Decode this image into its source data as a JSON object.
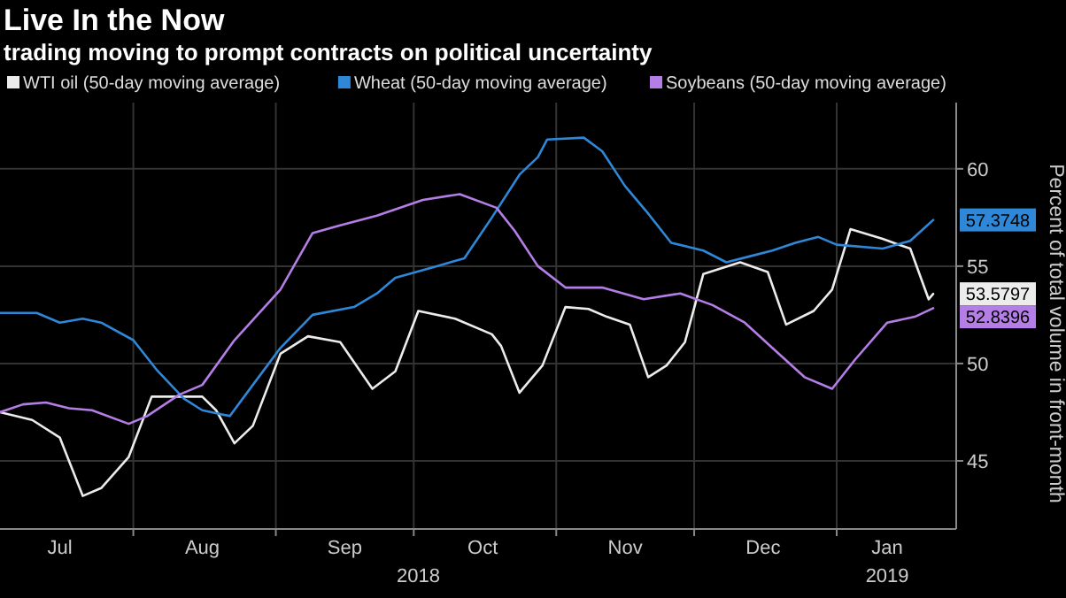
{
  "chart_data": {
    "type": "line",
    "title": "Live In the Now",
    "subtitle": "trading moving to prompt contracts on political uncertainty",
    "ylabel": "Percent of total volume in front-month",
    "xlim": [
      "2018-07-03",
      "2019-01-27"
    ],
    "xticks": [
      {
        "value": "2018-07-16",
        "label": "Jul"
      },
      {
        "value": "2018-08-01",
        "label": null
      },
      {
        "value": "2018-08-16",
        "label": "Aug"
      },
      {
        "value": "2018-09-01",
        "label": null
      },
      {
        "value": "2018-09-16",
        "label": "Sep"
      },
      {
        "value": "2018-10-01",
        "label": null
      },
      {
        "value": "2018-10-16",
        "label": "Oct"
      },
      {
        "value": "2018-11-01",
        "label": null
      },
      {
        "value": "2018-11-16",
        "label": "Nov"
      },
      {
        "value": "2018-12-01",
        "label": null
      },
      {
        "value": "2018-12-16",
        "label": "Dec"
      },
      {
        "value": "2019-01-01",
        "label": null
      },
      {
        "value": "2019-01-12",
        "label": "Jan"
      }
    ],
    "ylim": [
      41.5,
      63.4
    ],
    "yticks": [
      45,
      50,
      55,
      60
    ],
    "grid": true,
    "legend": "top",
    "line_style": "solid",
    "marker": "none",
    "x2lim": [
      "2018-07-03",
      "2019-01-27"
    ],
    "x2ticks": [
      {
        "value": "2018-10-02",
        "label": "2018"
      },
      {
        "value": "2019-01-12",
        "label": "2019"
      }
    ],
    "series": [
      {
        "name": "WTI oil (50-day moving average)",
        "color": "#ececec",
        "x": [
          "2018-07-03",
          "2018-07-10",
          "2018-07-16",
          "2018-07-21",
          "2018-07-25",
          "2018-07-31",
          "2018-08-05",
          "2018-08-11",
          "2018-08-16",
          "2018-08-19",
          "2018-08-23",
          "2018-08-27",
          "2018-09-02",
          "2018-09-08",
          "2018-09-15",
          "2018-09-22",
          "2018-09-27",
          "2018-10-02",
          "2018-10-10",
          "2018-10-18",
          "2018-10-20",
          "2018-10-24",
          "2018-10-29",
          "2018-11-03",
          "2018-11-08",
          "2018-11-12",
          "2018-11-17",
          "2018-11-21",
          "2018-11-25",
          "2018-11-29",
          "2018-12-03",
          "2018-12-11",
          "2018-12-17",
          "2018-12-21",
          "2018-12-27",
          "2018-12-31",
          "2019-01-04",
          "2019-01-11",
          "2019-01-17",
          "2019-01-21",
          "2019-01-22"
        ],
        "values": [
          47.5,
          47.1,
          46.2,
          43.2,
          43.6,
          45.2,
          48.3,
          48.3,
          48.3,
          47.6,
          45.9,
          46.8,
          50.5,
          51.4,
          51.1,
          48.7,
          49.6,
          52.7,
          52.3,
          51.5,
          50.9,
          48.5,
          49.9,
          52.9,
          52.8,
          52.4,
          52.0,
          49.3,
          49.9,
          51.1,
          54.6,
          55.2,
          54.7,
          52.0,
          52.7,
          53.8,
          56.9,
          56.4,
          55.9,
          53.3,
          53.5797
        ],
        "value_labels": [
          null,
          null,
          null,
          null,
          null,
          null,
          null,
          null,
          null,
          null,
          null,
          null,
          null,
          null,
          null,
          null,
          null,
          null,
          null,
          null,
          null,
          null,
          null,
          null,
          null,
          null,
          null,
          null,
          null,
          null,
          null,
          null,
          null,
          null,
          null,
          null,
          null,
          null,
          null,
          null,
          "53.5797"
        ]
      },
      {
        "name": "Wheat (50-day moving average)",
        "color": "#2f87d8",
        "x": [
          "2018-07-03",
          "2018-07-11",
          "2018-07-16",
          "2018-07-21",
          "2018-07-25",
          "2018-08-01",
          "2018-08-06",
          "2018-08-12",
          "2018-08-16",
          "2018-08-22",
          "2018-08-27",
          "2018-09-02",
          "2018-09-09",
          "2018-09-18",
          "2018-09-23",
          "2018-09-27",
          "2018-10-06",
          "2018-10-12",
          "2018-10-18",
          "2018-10-24",
          "2018-10-28",
          "2018-10-30",
          "2018-11-07",
          "2018-11-11",
          "2018-11-16",
          "2018-11-21",
          "2018-11-26",
          "2018-12-03",
          "2018-12-08",
          "2018-12-13",
          "2018-12-18",
          "2018-12-23",
          "2018-12-28",
          "2019-01-01",
          "2019-01-11",
          "2019-01-17",
          "2019-01-22"
        ],
        "values": [
          52.6,
          52.6,
          52.1,
          52.3,
          52.1,
          51.2,
          49.7,
          48.2,
          47.6,
          47.3,
          48.9,
          50.8,
          52.5,
          52.9,
          53.6,
          54.4,
          55.0,
          55.4,
          57.5,
          59.7,
          60.6,
          61.5,
          61.6,
          60.9,
          59.1,
          57.7,
          56.2,
          55.8,
          55.2,
          55.5,
          55.8,
          56.2,
          56.5,
          56.1,
          55.9,
          56.3,
          57.3748
        ],
        "value_labels": [
          null,
          null,
          null,
          null,
          null,
          null,
          null,
          null,
          null,
          null,
          null,
          null,
          null,
          null,
          null,
          null,
          null,
          null,
          null,
          null,
          null,
          null,
          null,
          null,
          null,
          null,
          null,
          null,
          null,
          null,
          null,
          null,
          null,
          null,
          null,
          null,
          "57.3748"
        ]
      },
      {
        "name": "Soybeans (50-day moving average)",
        "color": "#b47ee6",
        "x": [
          "2018-07-03",
          "2018-07-08",
          "2018-07-13",
          "2018-07-18",
          "2018-07-23",
          "2018-07-31",
          "2018-08-04",
          "2018-08-11",
          "2018-08-16",
          "2018-08-23",
          "2018-09-02",
          "2018-09-09",
          "2018-09-15",
          "2018-09-23",
          "2018-10-03",
          "2018-10-11",
          "2018-10-19",
          "2018-10-23",
          "2018-10-28",
          "2018-11-03",
          "2018-11-11",
          "2018-11-20",
          "2018-11-28",
          "2018-12-05",
          "2018-12-12",
          "2018-12-18",
          "2018-12-25",
          "2018-12-31",
          "2019-01-05",
          "2019-01-12",
          "2019-01-18",
          "2019-01-22"
        ],
        "values": [
          47.5,
          47.9,
          48.0,
          47.7,
          47.6,
          46.9,
          47.3,
          48.4,
          48.9,
          51.2,
          53.8,
          56.7,
          57.1,
          57.6,
          58.4,
          58.7,
          58.0,
          56.8,
          55.0,
          53.9,
          53.9,
          53.3,
          53.6,
          53.0,
          52.1,
          50.8,
          49.3,
          48.7,
          50.2,
          52.1,
          52.4,
          52.8396
        ],
        "value_labels": [
          null,
          null,
          null,
          null,
          null,
          null,
          null,
          null,
          null,
          null,
          null,
          null,
          null,
          null,
          null,
          null,
          null,
          null,
          null,
          null,
          null,
          null,
          null,
          null,
          null,
          null,
          null,
          null,
          null,
          null,
          null,
          "52.8396"
        ]
      }
    ]
  }
}
